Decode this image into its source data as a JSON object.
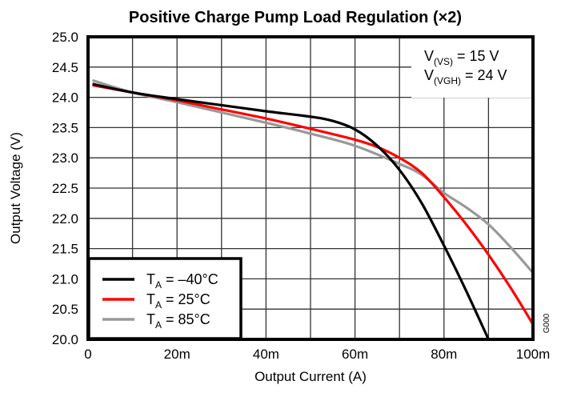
{
  "chart_data": {
    "type": "line",
    "title": "Positive Charge Pump Load Regulation (×2)",
    "xlabel": "Output Current (A)",
    "ylabel": "Output Voltage (V)",
    "xlim": [
      0,
      0.1
    ],
    "ylim": [
      20.0,
      25.0
    ],
    "x_ticks": [
      {
        "value": 0,
        "label": "0"
      },
      {
        "value": 0.02,
        "label": "20m"
      },
      {
        "value": 0.04,
        "label": "40m"
      },
      {
        "value": 0.06,
        "label": "60m"
      },
      {
        "value": 0.08,
        "label": "80m"
      },
      {
        "value": 0.1,
        "label": "100m"
      }
    ],
    "y_ticks": [
      {
        "value": 25.0,
        "label": "25.0"
      },
      {
        "value": 24.5,
        "label": "24.5"
      },
      {
        "value": 24.0,
        "label": "24.0"
      },
      {
        "value": 23.5,
        "label": "23.5"
      },
      {
        "value": 23.0,
        "label": "23.0"
      },
      {
        "value": 22.5,
        "label": "22.5"
      },
      {
        "value": 22.0,
        "label": "22.0"
      },
      {
        "value": 21.5,
        "label": "21.5"
      },
      {
        "value": 21.0,
        "label": "21.0"
      },
      {
        "value": 20.5,
        "label": "20.5"
      },
      {
        "value": 20.0,
        "label": "20.0"
      }
    ],
    "grid": true,
    "grid_x_step": 0.01,
    "grid_y_step": 0.5,
    "legend_position": "bottom-left",
    "series": [
      {
        "name": "T_A = −40°C",
        "label_main": "T",
        "label_sub": "A",
        "label_rest": " = –40°C",
        "color": "#000000",
        "x": [
          0.001,
          0.01,
          0.02,
          0.03,
          0.04,
          0.05,
          0.055,
          0.06,
          0.065,
          0.07,
          0.075,
          0.08,
          0.085,
          0.09
        ],
        "y": [
          24.22,
          24.08,
          23.97,
          23.87,
          23.77,
          23.68,
          23.61,
          23.47,
          23.2,
          22.8,
          22.25,
          21.55,
          20.8,
          20.0
        ]
      },
      {
        "name": "T_A = 25°C",
        "label_main": "T",
        "label_sub": "A",
        "label_rest": " = 25°C",
        "color": "#ff0000",
        "x": [
          0.001,
          0.01,
          0.02,
          0.03,
          0.04,
          0.05,
          0.06,
          0.065,
          0.07,
          0.075,
          0.08,
          0.085,
          0.09,
          0.095,
          0.1
        ],
        "y": [
          24.2,
          24.08,
          23.95,
          23.8,
          23.65,
          23.48,
          23.3,
          23.18,
          23.0,
          22.75,
          22.35,
          21.9,
          21.4,
          20.85,
          20.25
        ]
      },
      {
        "name": "T_A = 85°C",
        "label_main": "T",
        "label_sub": "A",
        "label_rest": " = 85°C",
        "color": "#999999",
        "x": [
          0.001,
          0.01,
          0.02,
          0.03,
          0.04,
          0.05,
          0.06,
          0.07,
          0.075,
          0.08,
          0.085,
          0.09,
          0.095,
          0.1
        ],
        "y": [
          24.28,
          24.08,
          23.92,
          23.75,
          23.58,
          23.4,
          23.2,
          22.9,
          22.72,
          22.42,
          22.18,
          21.9,
          21.52,
          21.1
        ]
      }
    ],
    "annotations": [
      {
        "main": "V",
        "sub": "(VS)",
        "rest": " = 15 V"
      },
      {
        "main": "V",
        "sub": "(VGH)",
        "rest": " = 24 V"
      }
    ],
    "figure_code": "G000"
  }
}
